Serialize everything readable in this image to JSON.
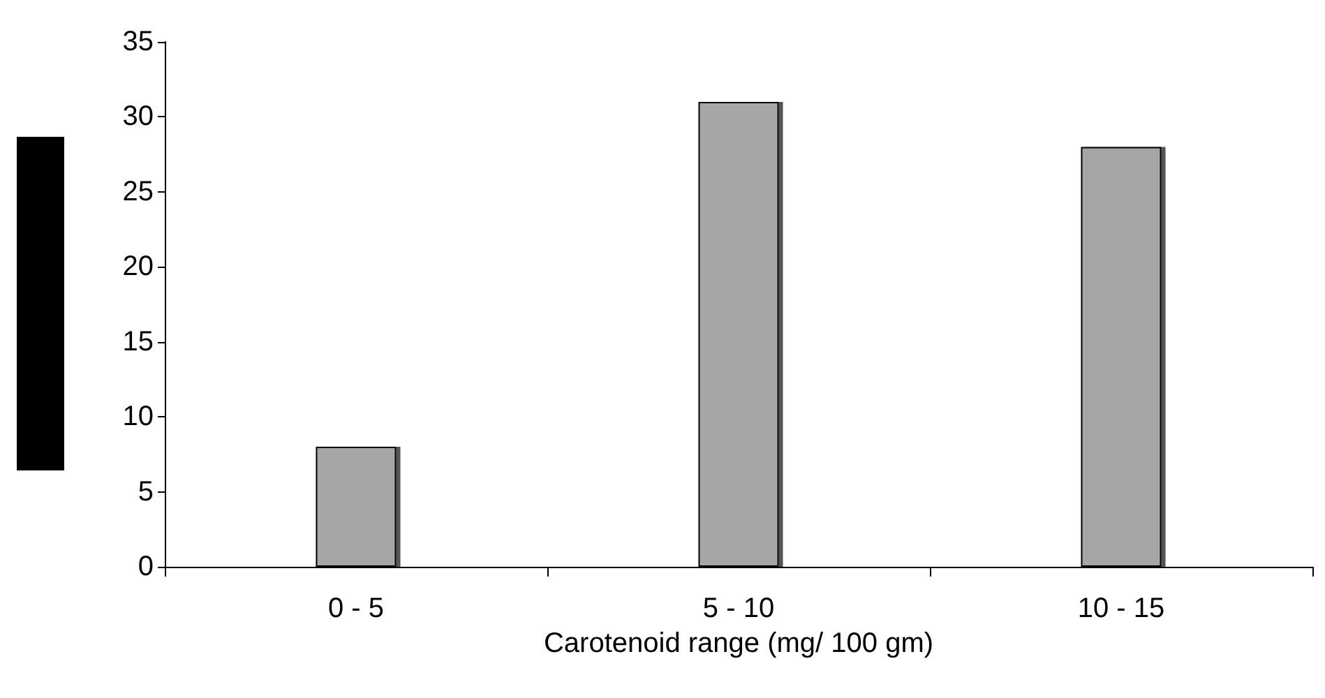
{
  "chart_data": {
    "type": "bar",
    "xlabel": "Carotenoid range (mg/ 100 gm)",
    "categories": [
      "0 - 5",
      "5 - 10",
      "10 - 15"
    ],
    "values": [
      8,
      31,
      28
    ],
    "color": "#a6a6a6",
    "ylim": [
      0,
      35
    ],
    "yticks": [
      0,
      5,
      10,
      15,
      20,
      25,
      30,
      35
    ],
    "grid": false
  }
}
